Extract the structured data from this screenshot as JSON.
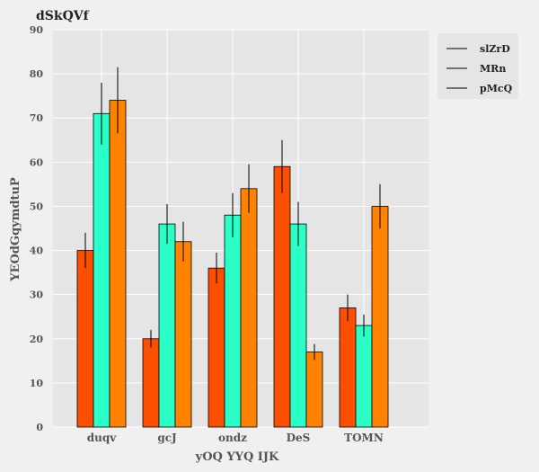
{
  "chart_data": {
    "type": "bar",
    "title": "dSkQVf",
    "xlabel": "yOQ YYQ IJK",
    "ylabel": "YEOdGqymdtuP",
    "categories": [
      "duqv",
      "gcJ",
      "ondz",
      "DeS",
      "TOMN"
    ],
    "ylim": [
      0,
      90
    ],
    "yticks": [
      0,
      10,
      20,
      30,
      40,
      50,
      60,
      70,
      80,
      90
    ],
    "grid": true,
    "legend_position": "top-right",
    "series": [
      {
        "name": "slZrD",
        "color": "#fc4f00",
        "values": [
          40,
          20,
          36,
          59,
          27
        ],
        "errors": [
          4,
          2,
          3.5,
          6,
          3
        ]
      },
      {
        "name": "MRn",
        "color": "#2affc8",
        "values": [
          71,
          46,
          48,
          46,
          23
        ],
        "errors": [
          7,
          4.5,
          5,
          5,
          2.5
        ]
      },
      {
        "name": "pMcQ",
        "color": "#ff8200",
        "values": [
          74,
          42,
          54,
          17,
          50
        ],
        "errors": [
          7.5,
          4.5,
          5.5,
          1.8,
          5
        ]
      }
    ]
  }
}
